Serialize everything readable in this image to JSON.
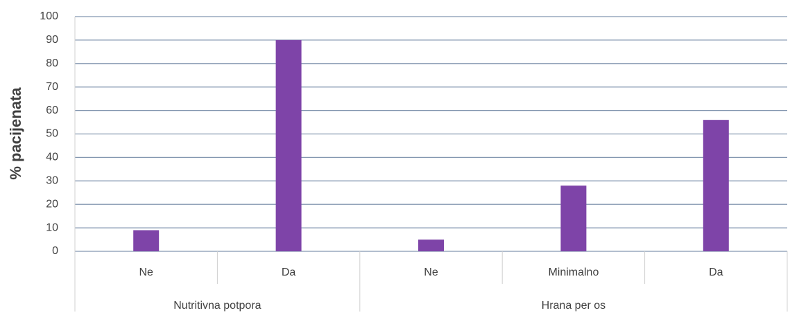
{
  "chart_data": {
    "type": "bar",
    "y_label": "% pacijenata",
    "color": "#7e44a8",
    "groups": [
      {
        "name": "Nutritivna potpora",
        "categories": [
          "Ne",
          "Da"
        ],
        "values": [
          9,
          90
        ]
      },
      {
        "name": "Hrana per os",
        "categories": [
          "Ne",
          "Minimalno",
          "Da"
        ],
        "values": [
          5,
          28,
          56
        ]
      }
    ],
    "ylim": [
      0,
      100
    ],
    "yticks": [
      0,
      10,
      20,
      30,
      40,
      50,
      60,
      70,
      80,
      90,
      100
    ],
    "grid": true
  }
}
